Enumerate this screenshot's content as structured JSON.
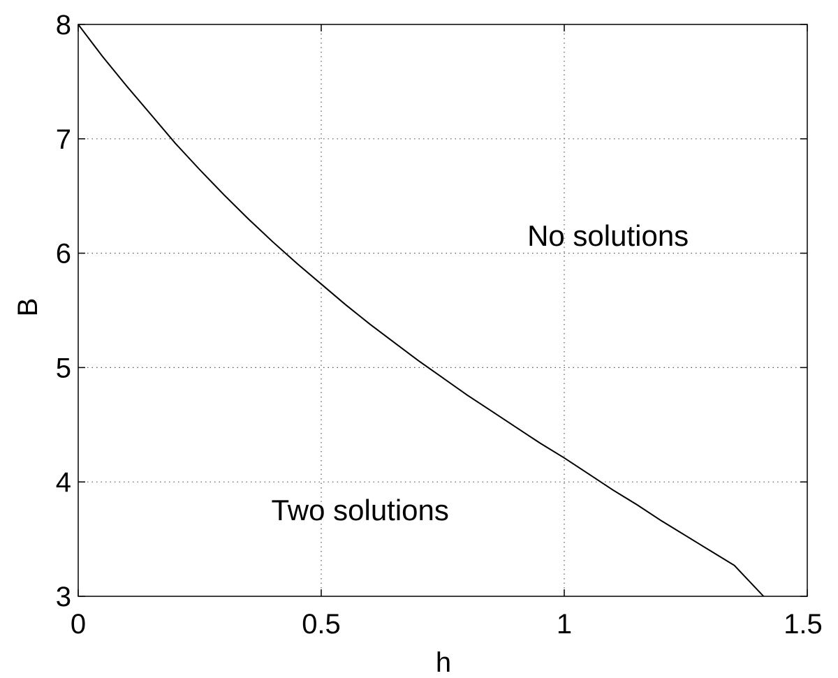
{
  "chart_data": {
    "type": "line",
    "title": "",
    "xlabel": "h",
    "ylabel": "B",
    "xlim": [
      0,
      1.5
    ],
    "ylim": [
      3,
      8
    ],
    "grid": true,
    "x_ticks": [
      0,
      0.5,
      1,
      1.5
    ],
    "x_tick_labels": [
      "0",
      "0.5",
      "1",
      "1.5"
    ],
    "y_ticks": [
      3,
      4,
      5,
      6,
      7,
      8
    ],
    "y_tick_labels": [
      "3",
      "4",
      "5",
      "6",
      "7",
      "8"
    ],
    "series": [
      {
        "x": [
          0,
          0.05,
          0.1,
          0.15,
          0.2,
          0.25,
          0.3,
          0.35,
          0.4,
          0.45,
          0.5,
          0.55,
          0.6,
          0.65,
          0.7,
          0.75,
          0.8,
          0.85,
          0.9,
          0.95,
          1.0,
          1.05,
          1.1,
          1.15,
          1.2,
          1.25,
          1.3,
          1.35,
          1.41
        ],
        "y": [
          8.0,
          7.72,
          7.46,
          7.21,
          6.96,
          6.73,
          6.51,
          6.3,
          6.1,
          5.91,
          5.73,
          5.55,
          5.38,
          5.22,
          5.06,
          4.91,
          4.76,
          4.62,
          4.48,
          4.34,
          4.21,
          4.07,
          3.93,
          3.8,
          3.66,
          3.53,
          3.4,
          3.27,
          3.0
        ]
      }
    ],
    "annotations": [
      {
        "text": "No solutions",
        "x": 1.09,
        "y": 6.15
      },
      {
        "text": "Two solutions",
        "x": 0.58,
        "y": 3.75
      }
    ],
    "line_color": "#000000",
    "grid_color": "#555555"
  }
}
